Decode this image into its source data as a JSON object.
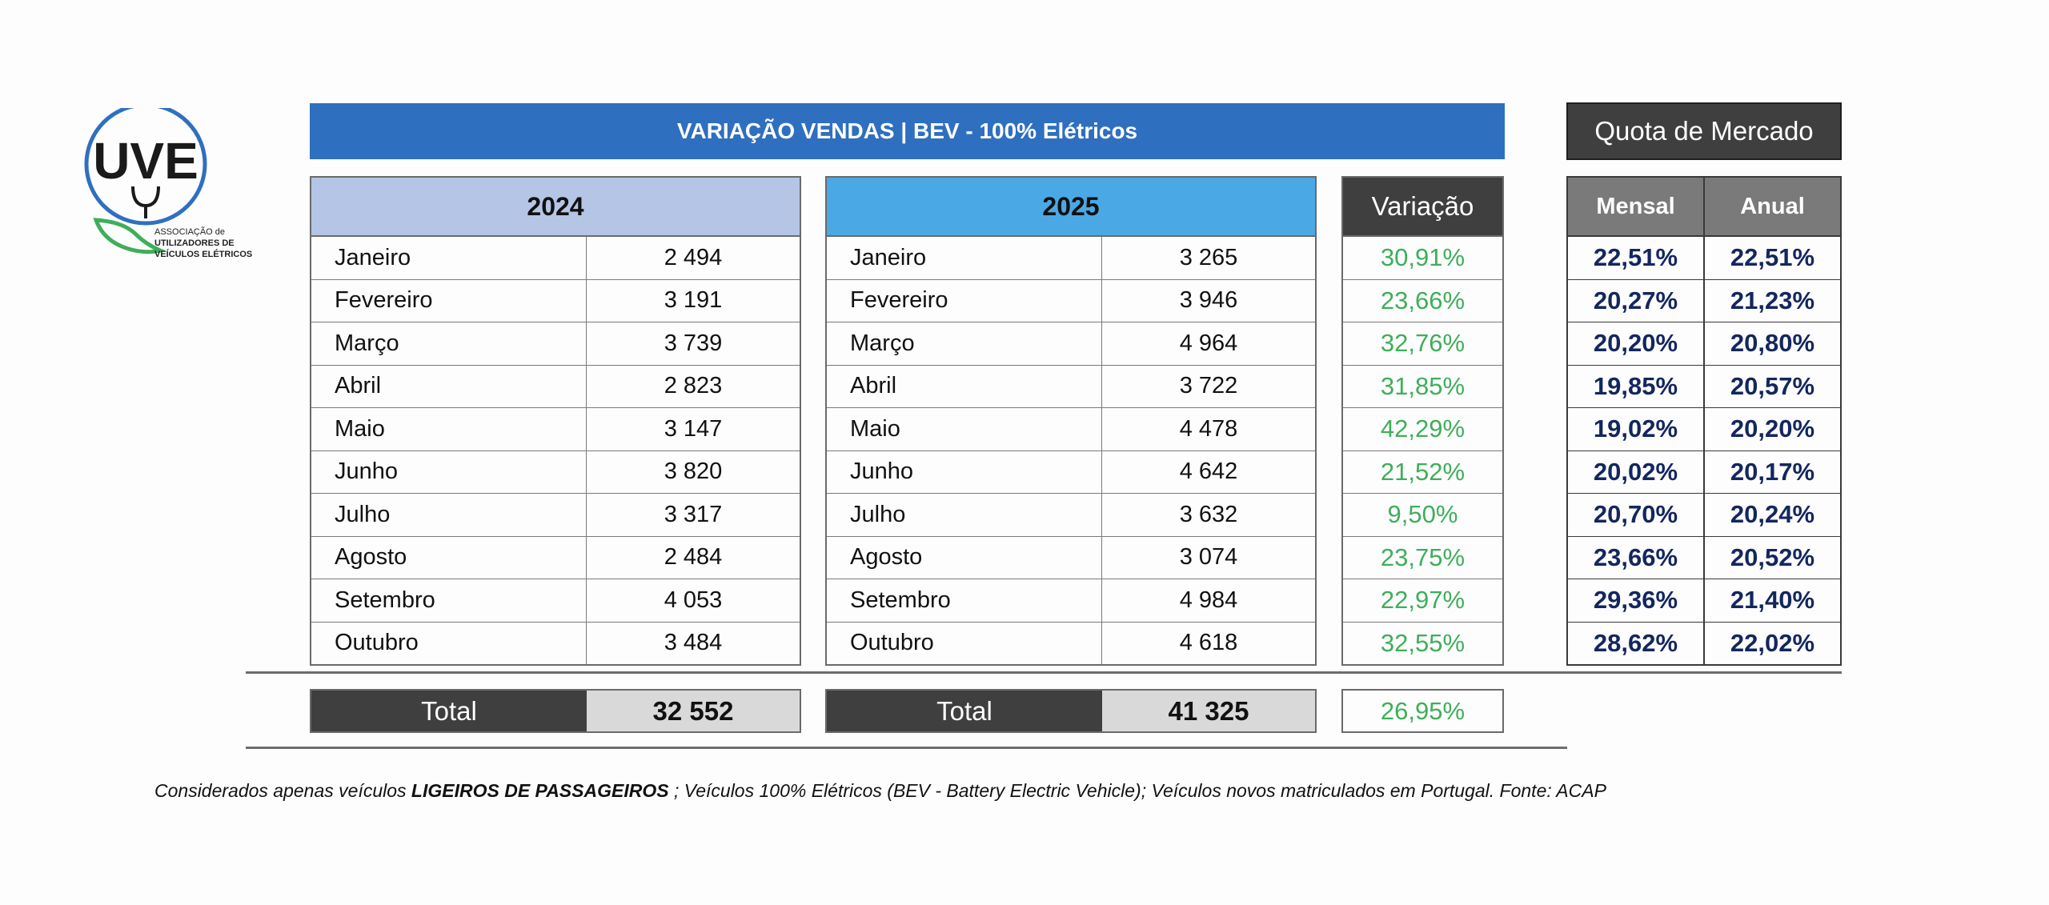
{
  "logo": {
    "mark": "UVE",
    "line1": "ASSOCIAÇÃO de",
    "line2": "UTILIZADORES DE",
    "line3": "VEÍCULOS ELÉTRICOS"
  },
  "banner": "VARIAÇÃO VENDAS | BEV - 100% Elétricos",
  "quota_title": "Quota de Mercado",
  "year_2024": {
    "label": "2024",
    "rows": [
      {
        "month": "Janeiro",
        "value": "2 494"
      },
      {
        "month": "Fevereiro",
        "value": "3 191"
      },
      {
        "month": "Março",
        "value": "3 739"
      },
      {
        "month": "Abril",
        "value": "2 823"
      },
      {
        "month": "Maio",
        "value": "3 147"
      },
      {
        "month": "Junho",
        "value": "3 820"
      },
      {
        "month": "Julho",
        "value": "3 317"
      },
      {
        "month": "Agosto",
        "value": "2 484"
      },
      {
        "month": "Setembro",
        "value": "4 053"
      },
      {
        "month": "Outubro",
        "value": "3 484"
      }
    ],
    "total_label": "Total",
    "total_value": "32 552"
  },
  "year_2025": {
    "label": "2025",
    "rows": [
      {
        "month": "Janeiro",
        "value": "3 265"
      },
      {
        "month": "Fevereiro",
        "value": "3 946"
      },
      {
        "month": "Março",
        "value": "4 964"
      },
      {
        "month": "Abril",
        "value": "3 722"
      },
      {
        "month": "Maio",
        "value": "4 478"
      },
      {
        "month": "Junho",
        "value": "4 642"
      },
      {
        "month": "Julho",
        "value": "3 632"
      },
      {
        "month": "Agosto",
        "value": "3 074"
      },
      {
        "month": "Setembro",
        "value": "4 984"
      },
      {
        "month": "Outubro",
        "value": "4 618"
      }
    ],
    "total_label": "Total",
    "total_value": "41 325"
  },
  "variation": {
    "label": "Variação",
    "values": [
      "30,91%",
      "23,66%",
      "32,76%",
      "31,85%",
      "42,29%",
      "21,52%",
      "9,50%",
      "23,75%",
      "22,97%",
      "32,55%"
    ],
    "total": "26,95%"
  },
  "quota": {
    "col_monthly": "Mensal",
    "col_annual": "Anual",
    "rows": [
      {
        "mensal": "22,51%",
        "anual": "22,51%"
      },
      {
        "mensal": "20,27%",
        "anual": "21,23%"
      },
      {
        "mensal": "20,20%",
        "anual": "20,80%"
      },
      {
        "mensal": "19,85%",
        "anual": "20,57%"
      },
      {
        "mensal": "19,02%",
        "anual": "20,20%"
      },
      {
        "mensal": "20,02%",
        "anual": "20,17%"
      },
      {
        "mensal": "20,70%",
        "anual": "20,24%"
      },
      {
        "mensal": "23,66%",
        "anual": "20,52%"
      },
      {
        "mensal": "29,36%",
        "anual": "21,40%"
      },
      {
        "mensal": "28,62%",
        "anual": "22,02%"
      }
    ]
  },
  "footnote": {
    "prefix": "Considerados apenas veículos ",
    "bold": "LIGEIROS DE PASSAGEIROS",
    "suffix": " ; Veículos 100% Elétricos (BEV - Battery Electric Vehicle); Veículos novos matriculados em Portugal. Fonte: ACAP"
  },
  "colors": {
    "banner_blue": "#2f6fbf",
    "header_2024": "#b4c5e5",
    "header_2025": "#4aa8e5",
    "dark_header": "#3f3f3f",
    "variation_green": "#3fae5a",
    "quota_navy": "#13275e"
  }
}
